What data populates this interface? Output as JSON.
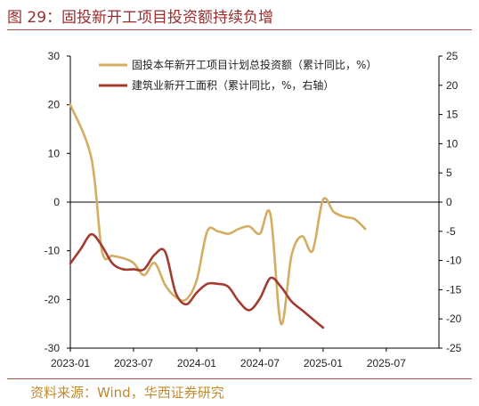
{
  "figure": {
    "title": "图 29：固投新开工项目投资额持续负增",
    "source": "资料来源：Wind，华西证券研究"
  },
  "colors": {
    "accent": "#9b2c2c",
    "source": "#c08a2e",
    "series1": "#d4ad62",
    "series2": "#a23c30"
  },
  "chart_data": {
    "type": "line",
    "title": "",
    "xlabel": "",
    "ylabel": "",
    "x_ticks": [
      "2023-01",
      "2023-07",
      "2024-01",
      "2024-07",
      "2025-01",
      "2025-07"
    ],
    "x_range": [
      "2023-01",
      "2025-12"
    ],
    "y_left": {
      "lim": [
        -30,
        30
      ],
      "ticks": [
        -30,
        -20,
        -10,
        0,
        10,
        20,
        30
      ]
    },
    "y_right": {
      "lim": [
        -25,
        25
      ],
      "ticks": [
        -25,
        -20,
        -15,
        -10,
        -5,
        0,
        5,
        10,
        15,
        20,
        25
      ]
    },
    "grid": false,
    "legend_position": "top-right",
    "series": [
      {
        "name": "固投本年新开工项目计划总投资额（累计同比，%）",
        "axis": "left",
        "x": [
          "2023-01",
          "2023-03",
          "2023-04",
          "2023-05",
          "2023-06",
          "2023-07",
          "2023-08",
          "2023-09",
          "2023-10",
          "2023-11",
          "2023-12",
          "2024-01",
          "2024-02",
          "2024-03",
          "2024-04",
          "2024-05",
          "2024-06",
          "2024-07",
          "2024-08",
          "2024-09",
          "2024-10",
          "2024-11",
          "2024-12",
          "2025-01",
          "2025-02",
          "2025-03",
          "2025-04",
          "2025-05",
          "2025-06",
          "2025-07",
          "2025-08",
          "2025-09",
          "2025-10",
          "2025-11",
          "2025-12"
        ],
        "values": [
          20,
          9,
          -10,
          -11,
          -11.5,
          -12.5,
          -15,
          -12.5,
          -17,
          -19.5,
          -20,
          -16,
          -6,
          -6,
          -6.5,
          -5.5,
          -5,
          -6.5,
          -2.5,
          -25,
          -11,
          -7,
          -10,
          0.5,
          -2,
          -3,
          -3.5,
          -5.5,
          null,
          null,
          null,
          null,
          null,
          null,
          null
        ]
      },
      {
        "name": "建筑业新开工面积（累计同比，%，右轴）",
        "axis": "right",
        "x": [
          "2023-01",
          "2023-02",
          "2023-03",
          "2023-04",
          "2023-05",
          "2023-06",
          "2023-07",
          "2023-08",
          "2023-09",
          "2023-10",
          "2023-11",
          "2023-12",
          "2024-01",
          "2024-02",
          "2024-03",
          "2024-04",
          "2024-05",
          "2024-06",
          "2024-07",
          "2024-08",
          "2024-09",
          "2024-10",
          "2024-11",
          "2024-12",
          "2025-01",
          "2025-02",
          "2025-03",
          "2025-04",
          "2025-05",
          "2025-06",
          "2025-07",
          "2025-08",
          "2025-09"
        ],
        "values": [
          -10.5,
          -8,
          -5.5,
          -7.5,
          -10.5,
          -11.5,
          -11.5,
          -11.5,
          -9,
          -8.5,
          -15.5,
          -17.5,
          -15.5,
          -14,
          -14,
          -14.5,
          -17,
          -18.5,
          -16.5,
          -13,
          -14.5,
          -17,
          -18.5,
          -20,
          -21.5,
          null,
          null,
          null,
          null,
          null,
          null,
          null,
          null
        ]
      }
    ]
  }
}
